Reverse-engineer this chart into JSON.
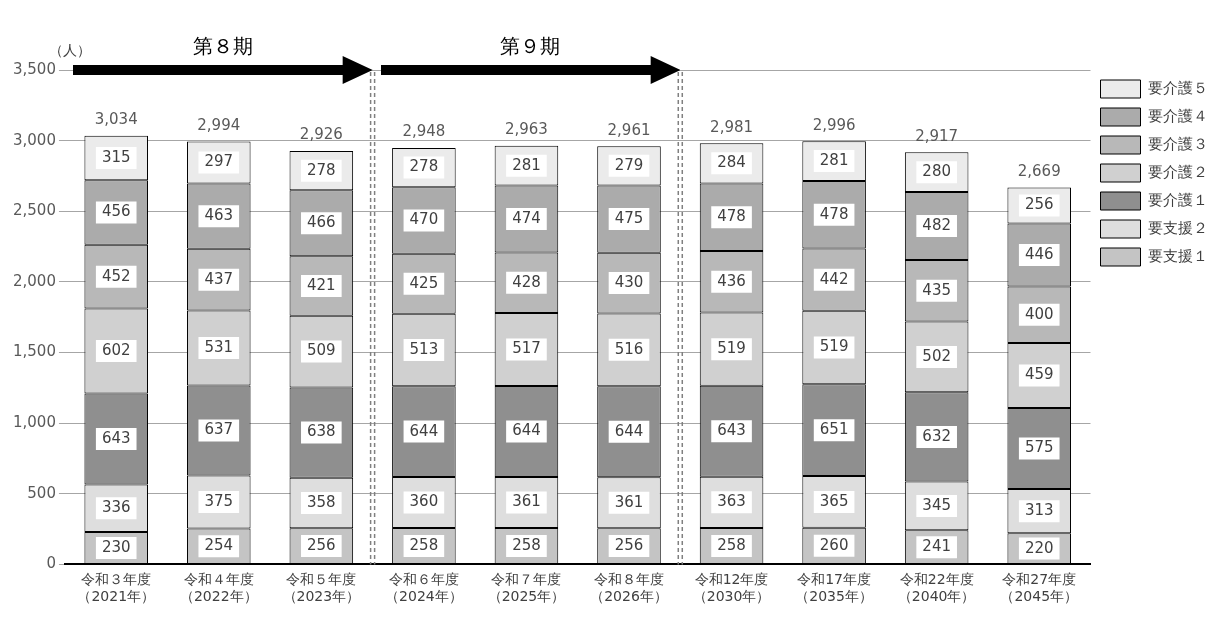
{
  "chart_data": {
    "type": "bar",
    "stacked": true,
    "ylabel": "（人）",
    "categories": [
      "令和３年度（2021年）",
      "令和４年度（2022年）",
      "令和５年度（2023年）",
      "令和６年度（2024年）",
      "令和７年度（2025年）",
      "令和８年度（2026年）",
      "令和12年度（2030年）",
      "令和17年度（2035年）",
      "令和22年度（2040年）",
      "令和27年度（2045年）"
    ],
    "series": [
      {
        "name": "要支援１",
        "color": "#c4c4c4",
        "values": [
          230,
          254,
          256,
          258,
          258,
          256,
          258,
          260,
          241,
          220
        ]
      },
      {
        "name": "要支援２",
        "color": "#dedede",
        "values": [
          336,
          375,
          358,
          360,
          361,
          361,
          363,
          365,
          345,
          313
        ]
      },
      {
        "name": "要介護１",
        "color": "#8f8f8f",
        "values": [
          643,
          637,
          638,
          644,
          644,
          644,
          643,
          651,
          632,
          575
        ]
      },
      {
        "name": "要介護２",
        "color": "#d0d0d0",
        "values": [
          602,
          531,
          509,
          513,
          517,
          516,
          519,
          519,
          502,
          459
        ]
      },
      {
        "name": "要介護３",
        "color": "#b8b8b8",
        "values": [
          452,
          437,
          421,
          425,
          428,
          430,
          436,
          442,
          435,
          400
        ]
      },
      {
        "name": "要介護４",
        "color": "#ababab",
        "values": [
          456,
          463,
          466,
          470,
          474,
          475,
          478,
          478,
          482,
          446
        ]
      },
      {
        "name": "要介護５",
        "color": "#ebebeb",
        "values": [
          315,
          297,
          278,
          278,
          281,
          279,
          284,
          281,
          280,
          256
        ]
      }
    ],
    "totals": [
      "3,034",
      "2,994",
      "2,926",
      "2,948",
      "2,963",
      "2,961",
      "2,981",
      "2,996",
      "2,917",
      "2,669"
    ],
    "data_labels": true,
    "ylim": [
      0,
      3500
    ],
    "yticks": [
      {
        "value": 0,
        "label": "0"
      },
      {
        "value": 500,
        "label": "500"
      },
      {
        "value": 1000,
        "label": "1,000"
      },
      {
        "value": 1500,
        "label": "1,500"
      },
      {
        "value": 2000,
        "label": "2,000"
      },
      {
        "value": 2500,
        "label": "2,500"
      },
      {
        "value": 3000,
        "label": "3,000"
      },
      {
        "value": 3500,
        "label": "3,500"
      }
    ],
    "annotations": [
      "第８期",
      "第９期"
    ],
    "grid": "y",
    "legend": "right"
  }
}
